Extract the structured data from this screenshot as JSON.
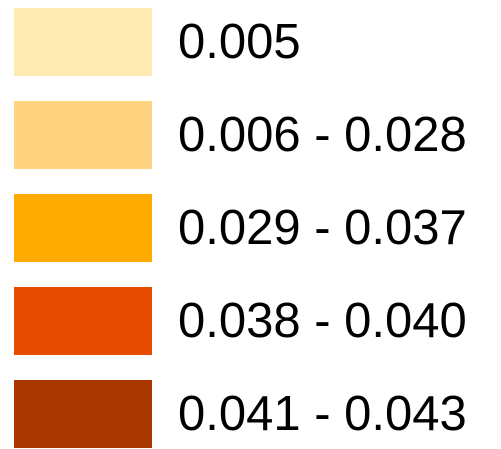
{
  "legend": {
    "items": [
      {
        "label": "0.005",
        "color": "#FFEBB2"
      },
      {
        "label": "0.006 - 0.028",
        "color": "#FFD380"
      },
      {
        "label": "0.029 - 0.037",
        "color": "#FFAA00"
      },
      {
        "label": "0.038 - 0.040",
        "color": "#E64C00"
      },
      {
        "label": "0.041 - 0.043",
        "color": "#A83800"
      }
    ]
  }
}
